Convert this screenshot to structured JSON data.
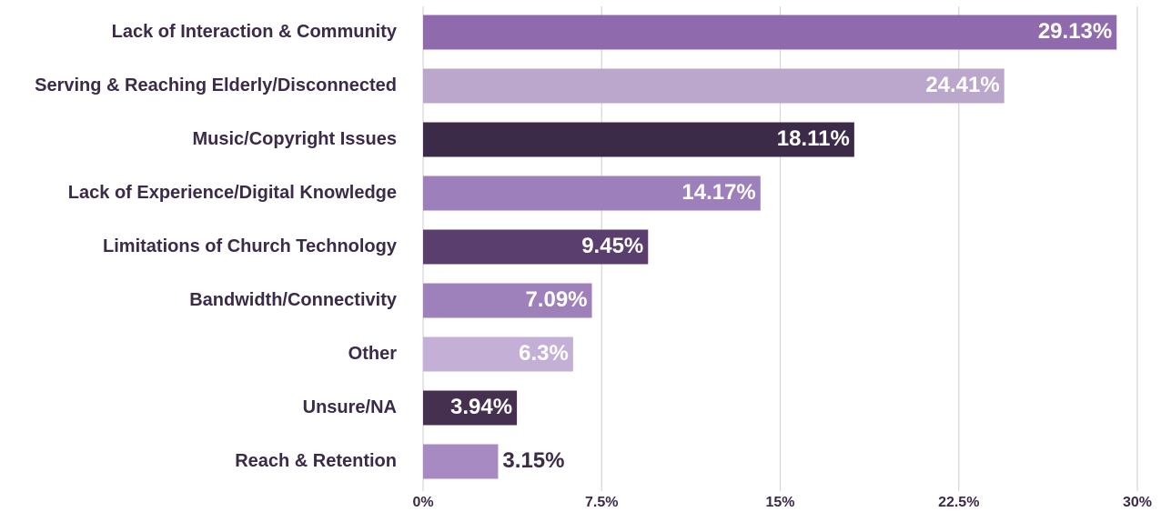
{
  "chart_data": {
    "type": "hbar",
    "categories": [
      "Lack of Interaction & Community",
      "Serving & Reaching Elderly/Disconnected",
      "Music/Copyright Issues",
      "Lack of Experience/Digital Knowledge",
      "Limitations of Church Technology",
      "Bandwidth/Connectivity",
      "Other",
      "Unsure/NA",
      "Reach & Retention"
    ],
    "values": [
      29.13,
      24.41,
      18.11,
      14.17,
      9.45,
      7.09,
      6.3,
      3.94,
      3.15
    ],
    "value_labels": [
      "29.13%",
      "24.41%",
      "18.11%",
      "14.17%",
      "9.45%",
      "7.09%",
      "6.3%",
      "3.94%",
      "3.15%"
    ],
    "colors": [
      "#8f6aac",
      "#bba6cc",
      "#3b2a48",
      "#9c7fbb",
      "#5a3e6e",
      "#9e80bb",
      "#c4b0d6",
      "#45314f",
      "#a88ac3"
    ],
    "xlim": [
      0,
      30
    ],
    "xticks": [
      {
        "value": 0,
        "label": "0%"
      },
      {
        "value": 7.5,
        "label": "7.5%"
      },
      {
        "value": 15,
        "label": "15%"
      },
      {
        "value": 22.5,
        "label": "22.5%"
      },
      {
        "value": 30,
        "label": "30%"
      }
    ],
    "grid": true
  }
}
